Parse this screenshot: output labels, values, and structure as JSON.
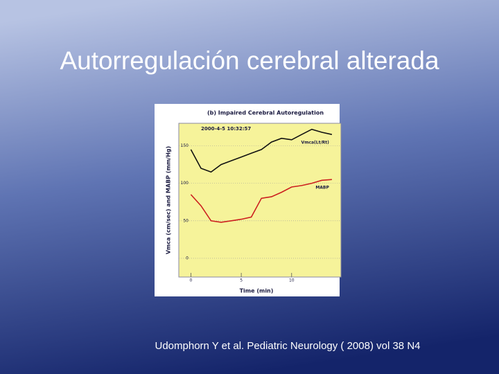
{
  "slide": {
    "title": "Autorregulación cerebral alterada",
    "citation": "Udomphorn Y et al.  Pediatric Neurology ( 2008)  vol 38 N4"
  },
  "chart_data": {
    "type": "line",
    "title": "(b)  Impaired Cerebral Autoregulation",
    "timestamp": "2000-4-5   10:32:57",
    "x_label": "Time (min)",
    "y_label": "Vmca (cm/sec) and MABP (mm/Hg)",
    "x": [
      0,
      1,
      2,
      3,
      4,
      5,
      6,
      7,
      8,
      9,
      10,
      11,
      12,
      13,
      14
    ],
    "series": [
      {
        "name": "Vmca(Lt/Rt)",
        "color": "#111111",
        "values": [
          145,
          120,
          115,
          125,
          130,
          135,
          140,
          145,
          155,
          160,
          158,
          165,
          172,
          168,
          165
        ]
      },
      {
        "name": "MABP",
        "color": "#cc1f1f",
        "values": [
          85,
          70,
          50,
          48,
          50,
          52,
          55,
          80,
          82,
          88,
          95,
          97,
          100,
          104,
          105
        ]
      }
    ],
    "xlim": [
      -1.2,
      14.9
    ],
    "ylim": [
      -25,
      180
    ],
    "xticks": [
      0,
      5,
      10
    ],
    "yticks": [
      0,
      50,
      100,
      150
    ]
  }
}
